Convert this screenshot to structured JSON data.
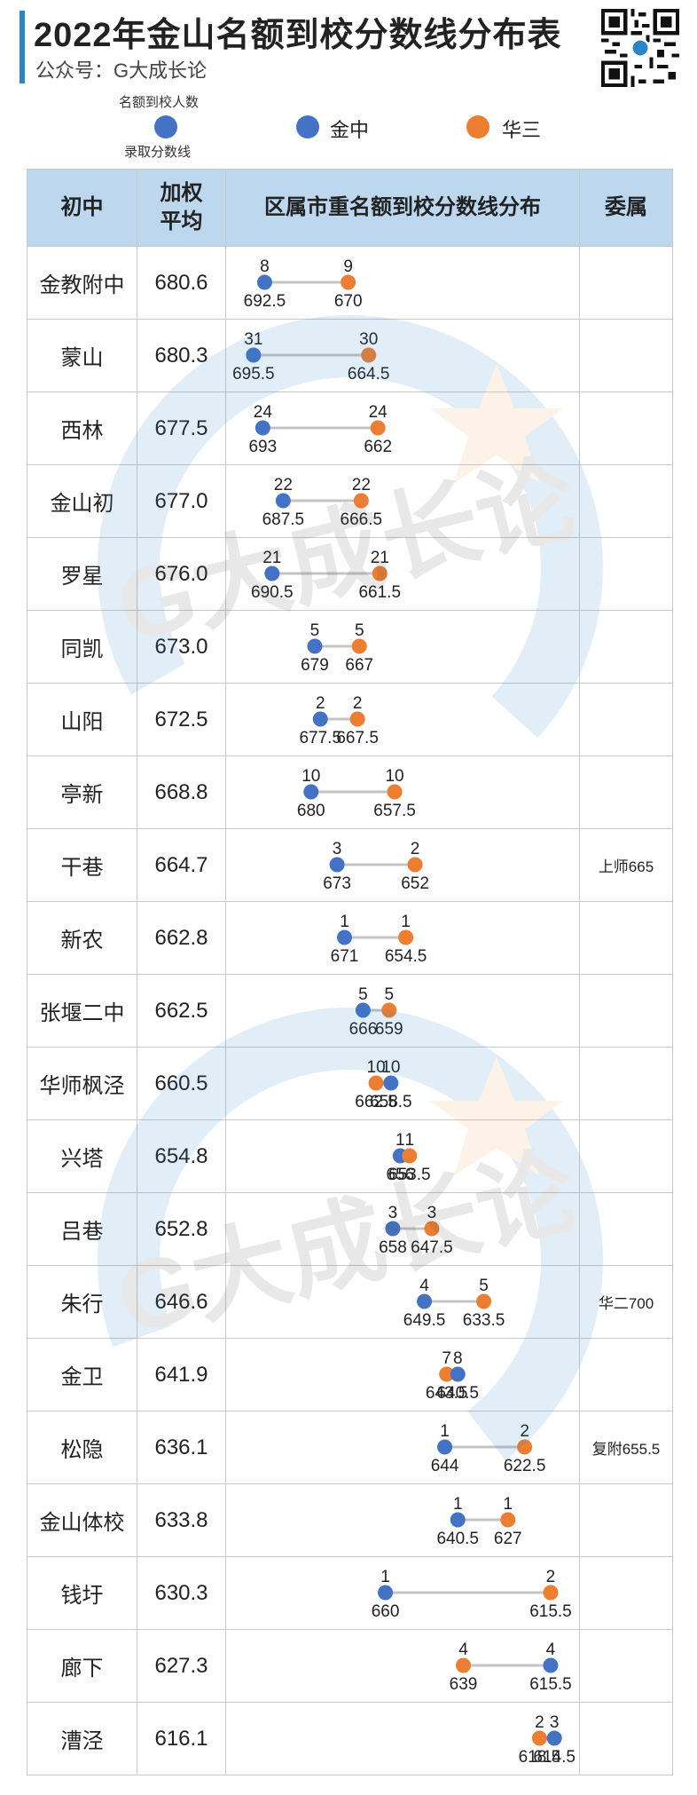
{
  "header": {
    "title": "2022年金山名额到校分数线分布表",
    "subtitle": "公众号：G大成长论"
  },
  "legend": {
    "top_text": "名额到校人数",
    "bottom_text": "录取分数线",
    "series": [
      {
        "name": "金中",
        "color": "#4472c4"
      },
      {
        "name": "华三",
        "color": "#ed7d31"
      }
    ]
  },
  "table": {
    "columns": [
      "初中",
      "加权\n平均",
      "区属市重名额到校分数线分布",
      "委属"
    ]
  },
  "chart_data": {
    "type": "dot-range",
    "title": "2022年金山名额到校分数线分布表",
    "series": [
      {
        "name": "金中",
        "color": "#4472c4"
      },
      {
        "name": "华三",
        "color": "#ed7d31"
      }
    ],
    "x_reversed": true,
    "rows": [
      {
        "school": "金教附中",
        "avg": "680.6",
        "jz": {
          "count": "8",
          "score": "692.5"
        },
        "hs": {
          "count": "9",
          "score": "670"
        },
        "affiliated": ""
      },
      {
        "school": "蒙山",
        "avg": "680.3",
        "jz": {
          "count": "31",
          "score": "695.5"
        },
        "hs": {
          "count": "30",
          "score": "664.5"
        },
        "affiliated": ""
      },
      {
        "school": "西林",
        "avg": "677.5",
        "jz": {
          "count": "24",
          "score": "693"
        },
        "hs": {
          "count": "24",
          "score": "662"
        },
        "affiliated": ""
      },
      {
        "school": "金山初",
        "avg": "677.0",
        "jz": {
          "count": "22",
          "score": "687.5"
        },
        "hs": {
          "count": "22",
          "score": "666.5"
        },
        "affiliated": ""
      },
      {
        "school": "罗星",
        "avg": "676.0",
        "jz": {
          "count": "21",
          "score": "690.5"
        },
        "hs": {
          "count": "21",
          "score": "661.5"
        },
        "affiliated": ""
      },
      {
        "school": "同凯",
        "avg": "673.0",
        "jz": {
          "count": "5",
          "score": "679"
        },
        "hs": {
          "count": "5",
          "score": "667"
        },
        "affiliated": ""
      },
      {
        "school": "山阳",
        "avg": "672.5",
        "jz": {
          "count": "2",
          "score": "677.5"
        },
        "hs": {
          "count": "2",
          "score": "667.5"
        },
        "affiliated": ""
      },
      {
        "school": "亭新",
        "avg": "668.8",
        "jz": {
          "count": "10",
          "score": "680"
        },
        "hs": {
          "count": "10",
          "score": "657.5"
        },
        "affiliated": ""
      },
      {
        "school": "干巷",
        "avg": "664.7",
        "jz": {
          "count": "3",
          "score": "673"
        },
        "hs": {
          "count": "2",
          "score": "652"
        },
        "affiliated": "上师665"
      },
      {
        "school": "新农",
        "avg": "662.8",
        "jz": {
          "count": "1",
          "score": "671"
        },
        "hs": {
          "count": "1",
          "score": "654.5"
        },
        "affiliated": ""
      },
      {
        "school": "张堰二中",
        "avg": "662.5",
        "jz": {
          "count": "5",
          "score": "666"
        },
        "hs": {
          "count": "5",
          "score": "659"
        },
        "affiliated": ""
      },
      {
        "school": "华师枫泾",
        "avg": "660.5",
        "jz": {
          "count": "10",
          "score": "658.5"
        },
        "hs": {
          "count": "10",
          "score": "662.5"
        },
        "affiliated": ""
      },
      {
        "school": "兴塔",
        "avg": "654.8",
        "jz": {
          "count": "1",
          "score": "656"
        },
        "hs": {
          "count": "1",
          "score": "653.5"
        },
        "affiliated": ""
      },
      {
        "school": "吕巷",
        "avg": "652.8",
        "jz": {
          "count": "3",
          "score": "658"
        },
        "hs": {
          "count": "3",
          "score": "647.5"
        },
        "affiliated": ""
      },
      {
        "school": "朱行",
        "avg": "646.6",
        "jz": {
          "count": "4",
          "score": "649.5"
        },
        "hs": {
          "count": "5",
          "score": "633.5"
        },
        "affiliated": "华二700"
      },
      {
        "school": "金卫",
        "avg": "641.9",
        "jz": {
          "count": "8",
          "score": "640.5"
        },
        "hs": {
          "count": "7",
          "score": "643.5"
        },
        "affiliated": ""
      },
      {
        "school": "松隐",
        "avg": "636.1",
        "jz": {
          "count": "1",
          "score": "644"
        },
        "hs": {
          "count": "2",
          "score": "622.5"
        },
        "affiliated": "复附655.5"
      },
      {
        "school": "金山体校",
        "avg": "633.8",
        "jz": {
          "count": "1",
          "score": "640.5"
        },
        "hs": {
          "count": "1",
          "score": "627"
        },
        "affiliated": ""
      },
      {
        "school": "钱圩",
        "avg": "630.3",
        "jz": {
          "count": "1",
          "score": "660"
        },
        "hs": {
          "count": "2",
          "score": "615.5"
        },
        "affiliated": ""
      },
      {
        "school": "廊下",
        "avg": "627.3",
        "jz": {
          "count": "4",
          "score": "615.5"
        },
        "hs": {
          "count": "4",
          "score": "639"
        },
        "affiliated": ""
      },
      {
        "school": "漕泾",
        "avg": "616.1",
        "jz": {
          "count": "3",
          "score": "614.5"
        },
        "hs": {
          "count": "2",
          "score": "618.5"
        },
        "affiliated": ""
      }
    ]
  },
  "watermark": {
    "text": "G大成长论"
  },
  "qr_code": {
    "icon": "qr-code-icon"
  }
}
